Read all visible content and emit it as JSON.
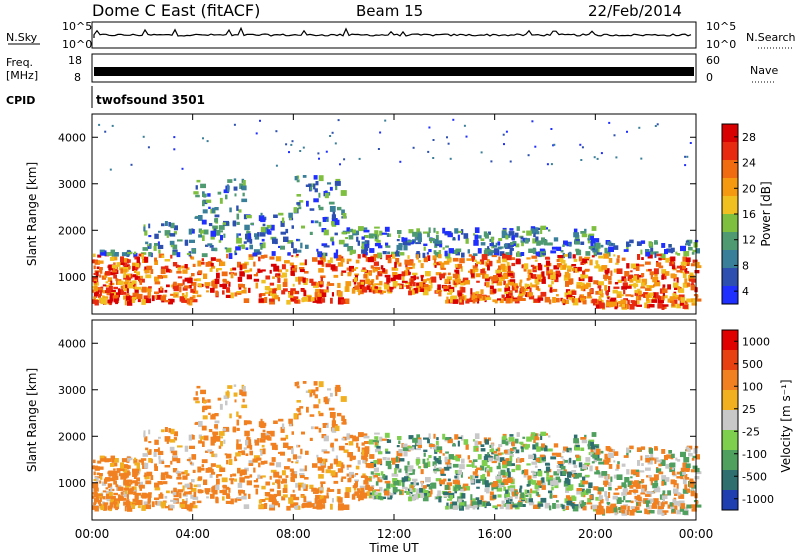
{
  "header": {
    "title": "Dome C East (fitACF)",
    "beam": "Beam 15",
    "date": "22/Feb/2014"
  },
  "strips": {
    "nsky_label": "N.Sky",
    "nsky_ticks": [
      "10^5",
      "10^0"
    ],
    "nsearch_label": "N.Search",
    "nsearch_ticks": [
      "10^5",
      "10^0"
    ],
    "freq_label_1": "Freq.",
    "freq_label_2": "[MHz]",
    "freq_ticks": [
      "18",
      "8"
    ],
    "nave_label": "Nave",
    "nave_ticks": [
      "60",
      "0"
    ],
    "cpid_label": "CPID",
    "cpid_value": "twofsound 3501"
  },
  "chart_data": [
    {
      "type": "heatmap",
      "name": "Power panel",
      "ylabel": "Slant Range [km]",
      "yticks": [
        1000,
        2000,
        3000,
        4000
      ],
      "ylim": [
        200,
        4500
      ],
      "xticks": [
        "00:00",
        "04:00",
        "08:00",
        "12:00",
        "16:00",
        "20:00",
        "00:00"
      ],
      "xlim_hours": [
        0,
        24
      ],
      "colorbar": {
        "label": "Power [dB]",
        "ticks": [
          "28",
          "24",
          "20",
          "16",
          "12",
          "8",
          "4"
        ],
        "range": [
          0,
          30
        ]
      }
    },
    {
      "type": "heatmap",
      "name": "Velocity panel",
      "ylabel": "Slant Range [km]",
      "yticks": [
        1000,
        2000,
        3000,
        4000
      ],
      "ylim": [
        200,
        4500
      ],
      "xticks": [
        "00:00",
        "04:00",
        "08:00",
        "12:00",
        "16:00",
        "20:00",
        "00:00"
      ],
      "xlabel": "Time UT",
      "xlim_hours": [
        0,
        24
      ],
      "colorbar": {
        "label": "Velocity [m s⁻¹]",
        "ticks": [
          "1000",
          "500",
          "100",
          "25",
          "-25",
          "-100",
          "-500",
          "-1000"
        ]
      }
    }
  ],
  "colors": {
    "power_scale": [
      "#1f2fff",
      "#2c4fb0",
      "#3a7f9a",
      "#4f9a70",
      "#7fbf3f",
      "#f0c020",
      "#f59a10",
      "#f06a10",
      "#e82a10",
      "#d80000"
    ],
    "velocity_scale": [
      "#1f3fb0",
      "#2f6f6f",
      "#4f9f5f",
      "#7fcf4f",
      "#c8c8c8",
      "#f0b020",
      "#f08020",
      "#e84010",
      "#e00000"
    ]
  }
}
